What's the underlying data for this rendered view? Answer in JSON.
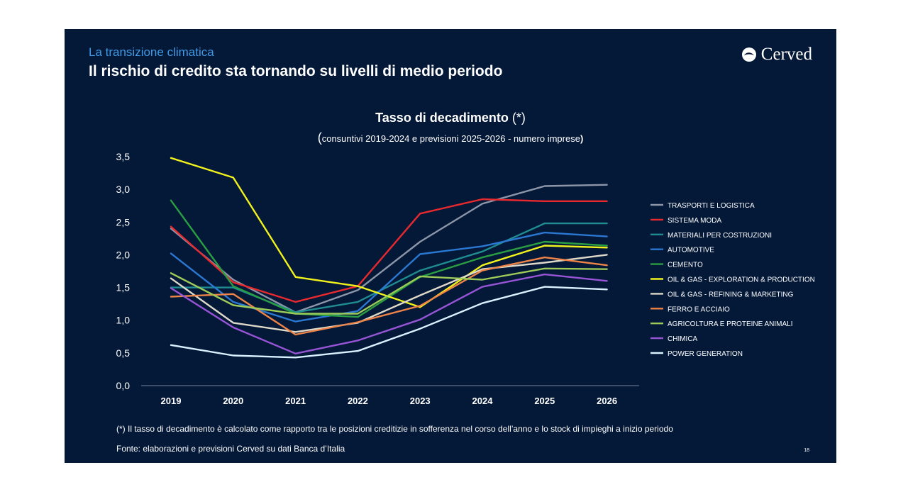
{
  "header": {
    "kicker": "La transizione climatica",
    "title": "Il rischio di credito sta tornando su livelli di medio periodo",
    "logo_text": "Cerved"
  },
  "chart_data": {
    "type": "line",
    "title": "Tasso di decadimento",
    "title_suffix": "(*)",
    "subtitle": "consuntivi 2019-2024 e previsioni 2025-2026 - numero imprese",
    "categories": [
      "2019",
      "2020",
      "2021",
      "2022",
      "2023",
      "2024",
      "2025",
      "2026"
    ],
    "yticks": [
      "0,0",
      "0,5",
      "1,0",
      "1,5",
      "2,0",
      "2,5",
      "3,0",
      "3,5"
    ],
    "ylim": [
      0,
      3.5
    ],
    "xlabel": "",
    "ylabel": "",
    "legend_position": "right",
    "series": [
      {
        "name": "TRASPORTI E LOGISTICA",
        "color": "#8c96a8",
        "values": [
          2.4,
          1.62,
          1.12,
          1.46,
          2.2,
          2.78,
          3.05,
          3.07
        ]
      },
      {
        "name": "SISTEMA MODA",
        "color": "#e8292d",
        "values": [
          2.43,
          1.58,
          1.28,
          1.52,
          2.63,
          2.85,
          2.82,
          2.82
        ]
      },
      {
        "name": "MATERIALI PER COSTRUZIONI",
        "color": "#1f8c92",
        "values": [
          1.5,
          1.5,
          1.12,
          1.28,
          1.76,
          2.05,
          2.48,
          2.48
        ]
      },
      {
        "name": "AUTOMOTIVE",
        "color": "#2a78d2",
        "values": [
          2.02,
          1.28,
          0.98,
          1.14,
          2.01,
          2.13,
          2.34,
          2.28
        ]
      },
      {
        "name": "CEMENTO",
        "color": "#2a9e43",
        "values": [
          2.83,
          1.52,
          1.1,
          1.05,
          1.66,
          1.96,
          2.2,
          2.14
        ]
      },
      {
        "name": "OIL & GAS - EXPLORATION & PRODUCTION",
        "color": "#f2f21c",
        "values": [
          3.48,
          3.18,
          1.66,
          1.52,
          1.2,
          1.84,
          2.14,
          2.11
        ]
      },
      {
        "name": "OIL & GAS - REFINING & MARKETING",
        "color": "#ded9c9",
        "values": [
          1.64,
          0.96,
          0.82,
          0.96,
          1.38,
          1.78,
          1.88,
          2.0
        ]
      },
      {
        "name": "FERRO E ACCIAIO",
        "color": "#ee8448",
        "values": [
          1.36,
          1.4,
          0.78,
          0.97,
          1.22,
          1.76,
          1.96,
          1.84
        ]
      },
      {
        "name": "AGRICOLTURA E PROTEINE ANIMALI",
        "color": "#9ccb58",
        "values": [
          1.72,
          1.23,
          1.1,
          1.1,
          1.67,
          1.62,
          1.79,
          1.78
        ]
      },
      {
        "name": "CHIMICA",
        "color": "#9755d6",
        "values": [
          1.49,
          0.89,
          0.49,
          0.69,
          1.01,
          1.51,
          1.7,
          1.6
        ]
      },
      {
        "name": "POWER GENERATION",
        "color": "#d8f2ff",
        "values": [
          0.62,
          0.46,
          0.43,
          0.53,
          0.87,
          1.26,
          1.51,
          1.47
        ]
      }
    ]
  },
  "footer": {
    "note": "(*) Il tasso di decadimento è calcolato come rapporto tra le posizioni creditizie in sofferenza nel corso dell’anno e lo stock di  impieghi a inizio periodo",
    "source": "Fonte: elaborazioni e previsioni Cerved su dati Banca d’Italia",
    "page_number": "18"
  },
  "colors": {
    "background": "#041838",
    "accent": "#3f9be6",
    "text": "#ffffff"
  }
}
